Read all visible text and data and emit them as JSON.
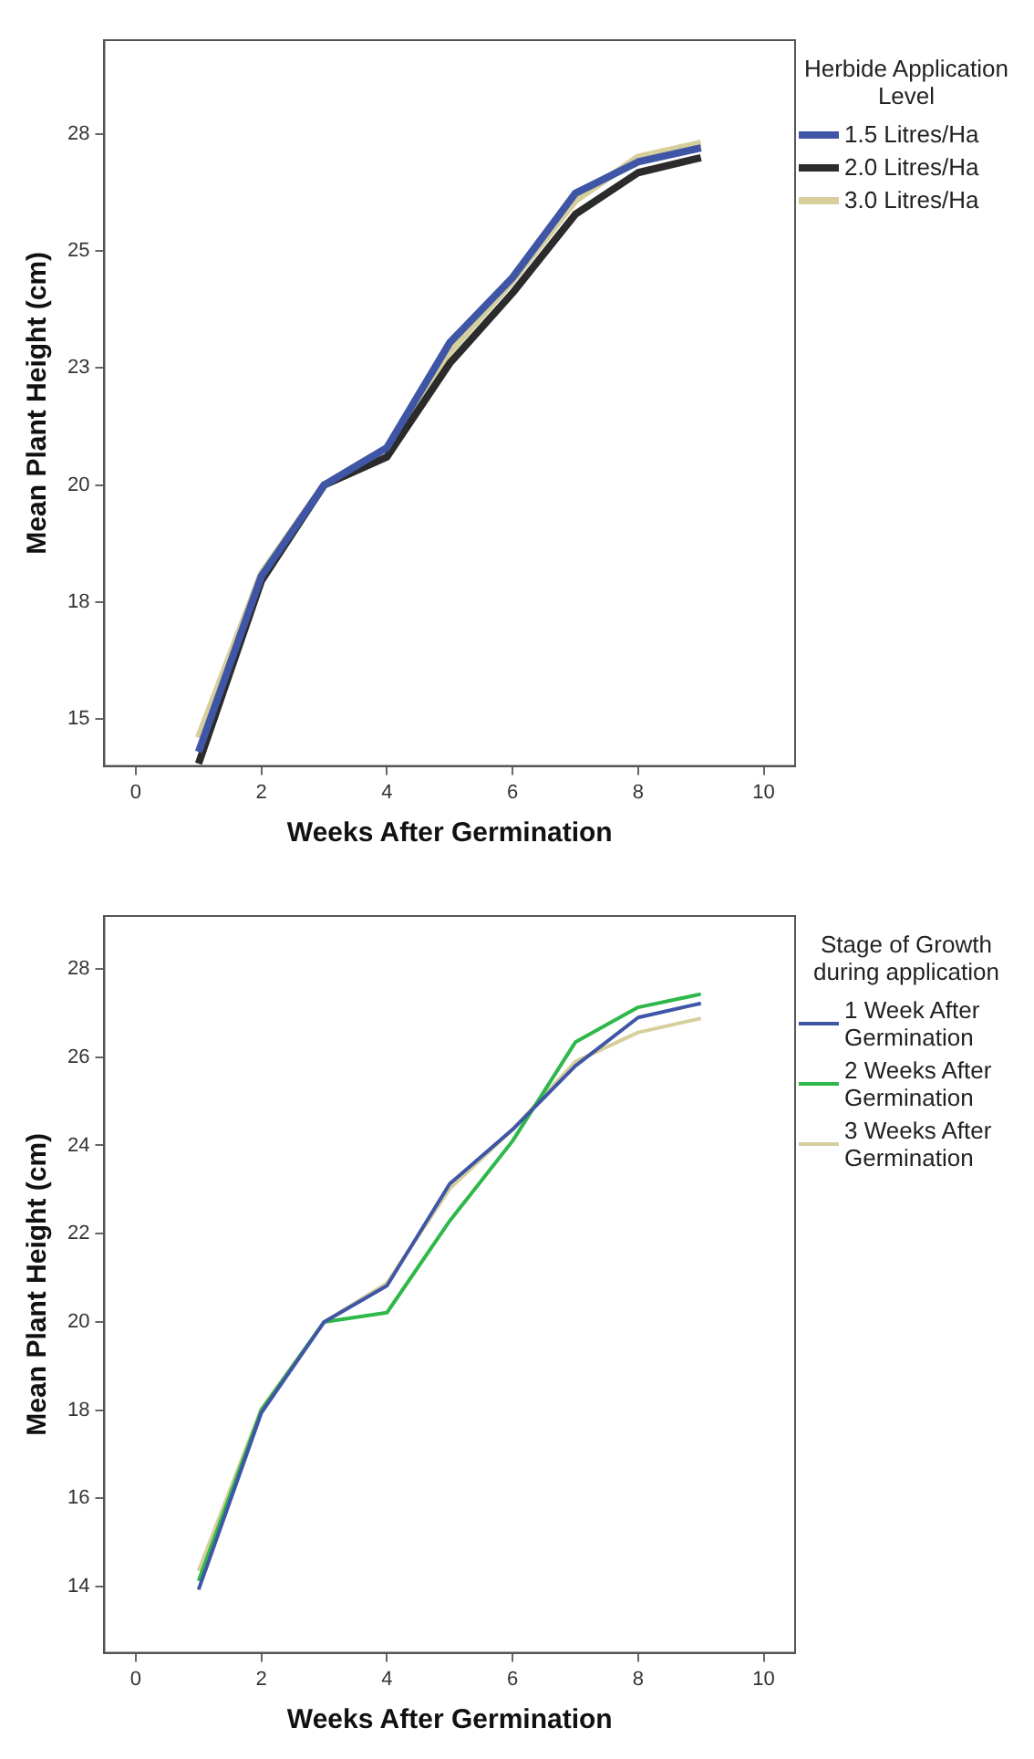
{
  "chart_data": [
    {
      "type": "line",
      "xlabel": "Weeks After Germination",
      "ylabel": "Mean Plant Height (cm)",
      "legend_title": "Herbide Application Level",
      "legend": "right",
      "marker": "none",
      "line_style": "solid",
      "x": [
        1,
        2,
        3,
        4,
        5,
        6,
        7,
        8,
        9
      ],
      "xlim": [
        -0.5,
        10.5
      ],
      "xticks": [
        0,
        2,
        4,
        6,
        8,
        10
      ],
      "ylim": [
        14,
        29.5
      ],
      "yticks": [
        15,
        {
          "value": 17.5,
          "label": "18"
        },
        20,
        {
          "value": 22.5,
          "label": "23"
        },
        25,
        {
          "value": 27.5,
          "label": "28"
        }
      ],
      "series": [
        {
          "name": "1.5 Litres/Ha",
          "color": "#3f56a6",
          "values": [
            14.3,
            18.05,
            20,
            20.8,
            23.04,
            24.43,
            26.23,
            26.9,
            27.2
          ]
        },
        {
          "name": "2.0 Litres/Ha",
          "color": "#2b2b2b",
          "values": [
            14.05,
            17.95,
            20,
            20.6,
            22.6,
            24.1,
            25.78,
            26.67,
            26.99
          ]
        },
        {
          "name": "3.0 Litres/Ha",
          "color": "#d6cf9c",
          "values": [
            14.6,
            18.1,
            20,
            20.6,
            22.85,
            24.37,
            26.08,
            27.0,
            27.3
          ]
        }
      ]
    },
    {
      "type": "line",
      "xlabel": "Weeks After Germination",
      "ylabel": "Mean Plant Height (cm)",
      "legend_title": "Stage of Growth during application",
      "legend": "right",
      "marker": "none",
      "line_style": "solid",
      "x": [
        1,
        2,
        3,
        4,
        5,
        6,
        7,
        8,
        9
      ],
      "xlim": [
        -0.5,
        10.5
      ],
      "xticks": [
        0,
        2,
        4,
        6,
        8,
        10
      ],
      "ylim": [
        12.5,
        29.2
      ],
      "yticks": [
        14,
        16,
        18,
        20,
        22,
        24,
        26,
        28
      ],
      "series": [
        {
          "name": "1 Week After Germination",
          "color": "#3f56a6",
          "values": [
            13.93,
            17.94,
            20,
            20.82,
            23.13,
            24.36,
            25.8,
            26.9,
            27.22
          ]
        },
        {
          "name": "2 Weeks After Germination",
          "color": "#2eb84a",
          "values": [
            14.13,
            18.0,
            20,
            20.21,
            22.29,
            24.1,
            26.34,
            27.13,
            27.43
          ]
        },
        {
          "name": "3 Weeks After Germination",
          "color": "#d6cf9c",
          "values": [
            14.36,
            18.03,
            20,
            20.88,
            23.02,
            24.36,
            25.9,
            26.56,
            26.88
          ]
        }
      ]
    }
  ]
}
